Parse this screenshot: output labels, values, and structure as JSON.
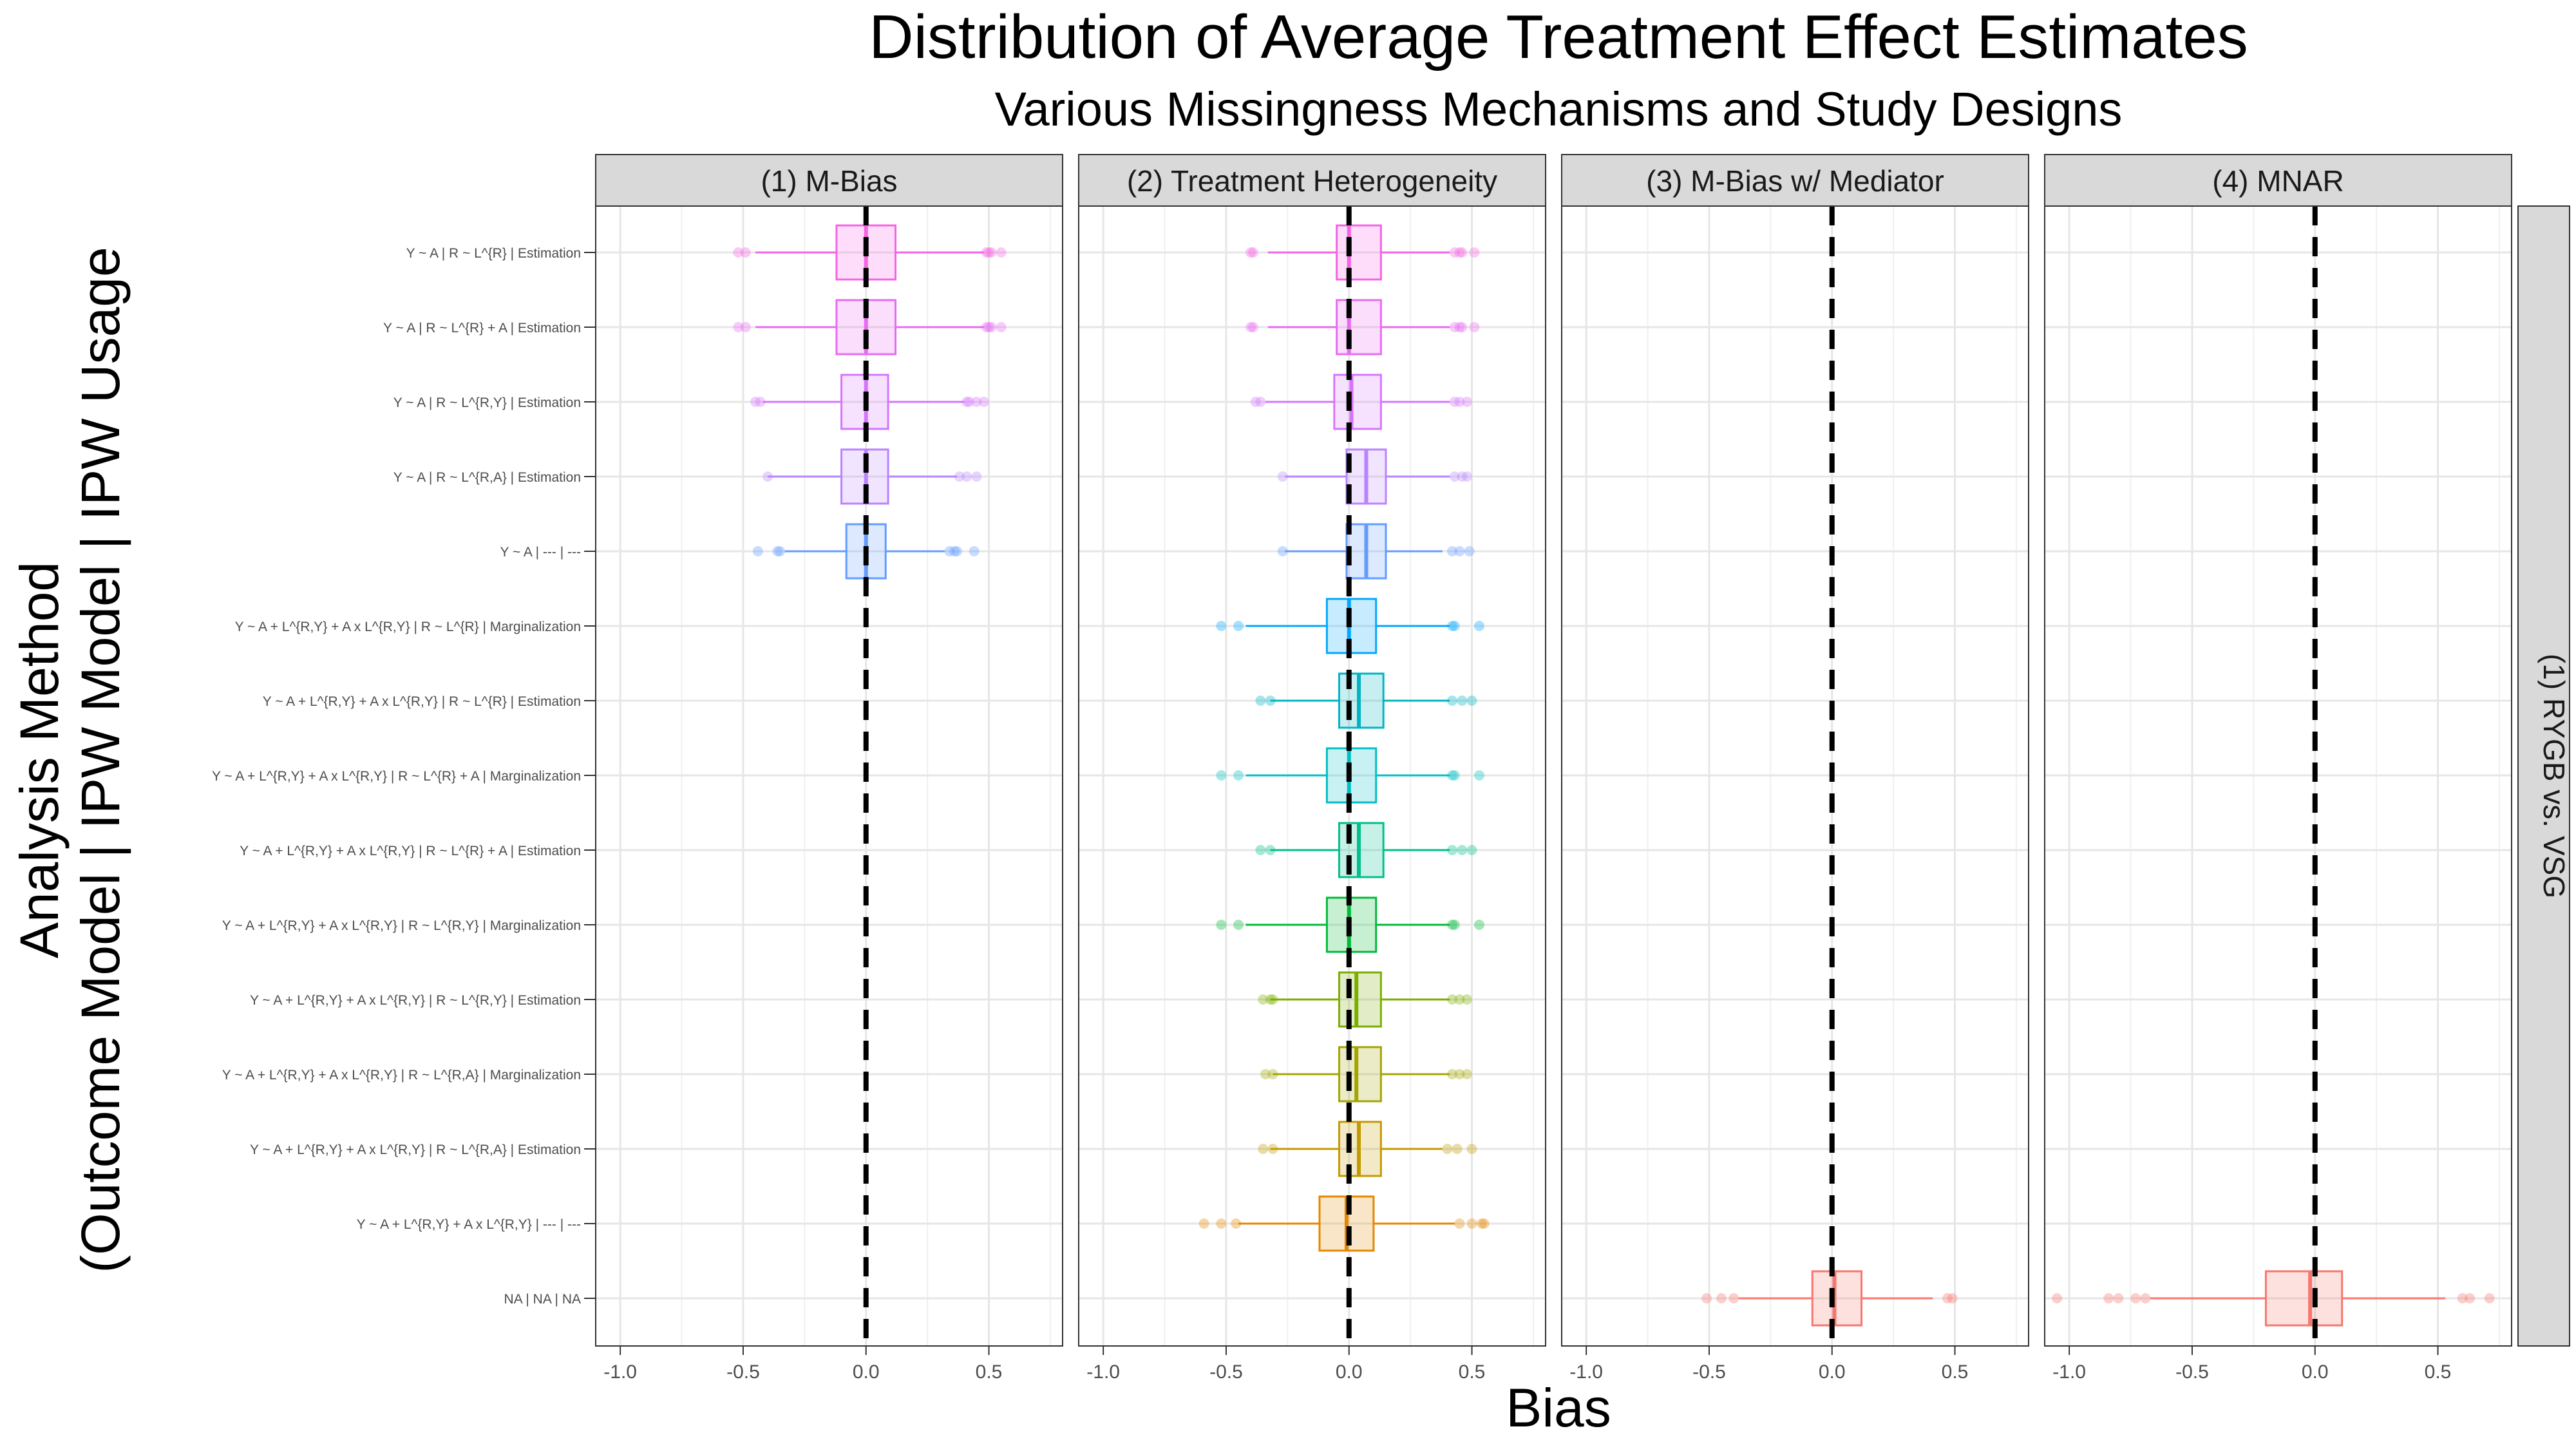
{
  "chart_data": {
    "type": "boxplot",
    "title": "Distribution of Average Treatment Effect Estimates",
    "subtitle": "Various Missingness Mechanisms and Study Designs",
    "xlabel": "Bias",
    "ylabel_line1": "Analysis Method",
    "ylabel_line2": "(Outcome Model | IPW Model | IPW Usage",
    "xlim": [
      -1.1,
      0.8
    ],
    "x_ticks": [
      -1.0,
      -0.5,
      0.0,
      0.5
    ],
    "x_tick_labels": [
      "-1.0",
      "-0.5",
      "0.0",
      "0.5"
    ],
    "reference_line": 0,
    "row_facet": "(1) RYGB vs. VSG",
    "panels": [
      "(1) M-Bias",
      "(2) Treatment Heterogeneity",
      "(3) M-Bias w/ Mediator",
      "(4) MNAR"
    ],
    "methods": [
      {
        "label": "Y ~ A | R ~ L^{R} | Estimation",
        "color": "#F564E3"
      },
      {
        "label": "Y ~ A | R ~ L^{R} + A | Estimation",
        "color": "#E76BF3"
      },
      {
        "label": "Y ~ A | R ~ L^{R,Y} | Estimation",
        "color": "#D575FE"
      },
      {
        "label": "Y ~ A | R ~ L^{R,A} | Estimation",
        "color": "#B983FF"
      },
      {
        "label": "Y ~ A | --- | ---",
        "color": "#619CFF"
      },
      {
        "label": "Y ~ A + L^{R,Y} + A x L^{R,Y} | R ~ L^{R} | Marginalization",
        "color": "#00A9FF"
      },
      {
        "label": "Y ~ A + L^{R,Y} + A x L^{R,Y} | R ~ L^{R} | Estimation",
        "color": "#00B4C3"
      },
      {
        "label": "Y ~ A + L^{R,Y} + A x L^{R,Y} | R ~ L^{R} + A | Marginalization",
        "color": "#00BFC4"
      },
      {
        "label": "Y ~ A + L^{R,Y} + A x L^{R,Y} | R ~ L^{R} + A | Estimation",
        "color": "#00C08B"
      },
      {
        "label": "Y ~ A + L^{R,Y} + A x L^{R,Y} | R ~ L^{R,Y} | Marginalization",
        "color": "#00BA38"
      },
      {
        "label": "Y ~ A + L^{R,Y} + A x L^{R,Y} | R ~ L^{R,Y} | Estimation",
        "color": "#7CAE00"
      },
      {
        "label": "Y ~ A + L^{R,Y} + A x L^{R,Y} | R ~ L^{R,A} | Marginalization",
        "color": "#A3A500"
      },
      {
        "label": "Y ~ A + L^{R,Y} + A x L^{R,Y} | R ~ L^{R,A} | Estimation",
        "color": "#C49A00"
      },
      {
        "label": "Y ~ A + L^{R,Y} + A x L^{R,Y} | --- | ---",
        "color": "#E58700"
      },
      {
        "label": "NA | NA | NA",
        "color": "#F8766D"
      }
    ],
    "boxes": [
      [
        {
          "q1": -0.12,
          "med": 0.0,
          "q3": 0.12,
          "lo": -0.45,
          "hi": 0.48,
          "out": [
            -0.52,
            -0.49,
            0.49,
            0.5,
            0.51,
            0.55
          ]
        },
        {
          "q1": -0.12,
          "med": 0.0,
          "q3": 0.12,
          "lo": -0.45,
          "hi": 0.48,
          "out": [
            -0.52,
            -0.49,
            0.49,
            0.5,
            0.51,
            0.55
          ]
        },
        {
          "q1": -0.1,
          "med": 0.0,
          "q3": 0.09,
          "lo": -0.42,
          "hi": 0.4,
          "out": [
            -0.45,
            -0.43,
            0.41,
            0.42,
            0.45,
            0.48
          ]
        },
        {
          "q1": -0.1,
          "med": 0.0,
          "q3": 0.09,
          "lo": -0.4,
          "hi": 0.37,
          "out": [
            -0.4,
            0.38,
            0.41,
            0.45
          ]
        },
        {
          "q1": -0.08,
          "med": 0.0,
          "q3": 0.08,
          "lo": -0.33,
          "hi": 0.32,
          "out": [
            -0.44,
            -0.36,
            -0.35,
            0.34,
            0.36,
            0.37,
            0.44
          ]
        }
      ],
      [
        {
          "q1": -0.05,
          "med": 0.0,
          "q3": 0.13,
          "lo": -0.33,
          "hi": 0.41,
          "out": [
            -0.4,
            -0.39,
            0.43,
            0.45,
            0.46,
            0.51
          ]
        },
        {
          "q1": -0.05,
          "med": 0.0,
          "q3": 0.13,
          "lo": -0.33,
          "hi": 0.41,
          "out": [
            -0.4,
            -0.39,
            0.43,
            0.45,
            0.46,
            0.51
          ]
        },
        {
          "q1": -0.06,
          "med": 0.01,
          "q3": 0.13,
          "lo": -0.34,
          "hi": 0.41,
          "out": [
            -0.38,
            -0.36,
            0.43,
            0.45,
            0.48
          ]
        },
        {
          "q1": -0.01,
          "med": 0.07,
          "q3": 0.15,
          "lo": -0.26,
          "hi": 0.41,
          "out": [
            -0.27,
            0.43,
            0.46,
            0.48
          ]
        },
        {
          "q1": -0.01,
          "med": 0.07,
          "q3": 0.15,
          "lo": -0.26,
          "hi": 0.38,
          "out": [
            -0.27,
            0.42,
            0.45,
            0.49
          ]
        },
        {
          "q1": -0.09,
          "med": 0.0,
          "q3": 0.11,
          "lo": -0.42,
          "hi": 0.41,
          "out": [
            -0.52,
            -0.45,
            0.42,
            0.43,
            0.53
          ]
        },
        {
          "q1": -0.04,
          "med": 0.04,
          "q3": 0.14,
          "lo": -0.32,
          "hi": 0.41,
          "out": [
            -0.36,
            -0.32,
            0.42,
            0.46,
            0.5
          ]
        },
        {
          "q1": -0.09,
          "med": 0.0,
          "q3": 0.11,
          "lo": -0.42,
          "hi": 0.41,
          "out": [
            -0.52,
            -0.45,
            0.42,
            0.43,
            0.53
          ]
        },
        {
          "q1": -0.04,
          "med": 0.04,
          "q3": 0.14,
          "lo": -0.32,
          "hi": 0.41,
          "out": [
            -0.36,
            -0.32,
            0.42,
            0.46,
            0.5
          ]
        },
        {
          "q1": -0.09,
          "med": 0.0,
          "q3": 0.11,
          "lo": -0.42,
          "hi": 0.41,
          "out": [
            -0.52,
            -0.45,
            0.42,
            0.43,
            0.53
          ]
        },
        {
          "q1": -0.04,
          "med": 0.03,
          "q3": 0.13,
          "lo": -0.32,
          "hi": 0.41,
          "out": [
            -0.35,
            -0.32,
            -0.31,
            0.42,
            0.45,
            0.48
          ]
        },
        {
          "q1": -0.04,
          "med": 0.03,
          "q3": 0.13,
          "lo": -0.31,
          "hi": 0.41,
          "out": [
            -0.34,
            -0.31,
            0.42,
            0.45,
            0.48
          ]
        },
        {
          "q1": -0.04,
          "med": 0.04,
          "q3": 0.13,
          "lo": -0.32,
          "hi": 0.38,
          "out": [
            -0.35,
            -0.31,
            0.4,
            0.44,
            0.5
          ]
        },
        {
          "q1": -0.12,
          "med": -0.01,
          "q3": 0.1,
          "lo": -0.45,
          "hi": 0.43,
          "out": [
            -0.59,
            -0.52,
            -0.46,
            0.45,
            0.5,
            0.54,
            0.55
          ]
        },
        null
      ],
      [
        null,
        null,
        null,
        null,
        null,
        null,
        null,
        null,
        null,
        null,
        null,
        null,
        null,
        null,
        {
          "q1": -0.08,
          "med": 0.01,
          "q3": 0.12,
          "lo": -0.38,
          "hi": 0.41,
          "out": [
            -0.51,
            -0.45,
            -0.4,
            0.47,
            0.49
          ]
        }
      ],
      [
        null,
        null,
        null,
        null,
        null,
        null,
        null,
        null,
        null,
        null,
        null,
        null,
        null,
        null,
        {
          "q1": -0.2,
          "med": -0.02,
          "q3": 0.11,
          "lo": -0.67,
          "hi": 0.53,
          "out": [
            -1.05,
            -0.84,
            -0.8,
            -0.73,
            -0.69,
            0.6,
            0.63,
            0.71
          ]
        }
      ]
    ]
  }
}
